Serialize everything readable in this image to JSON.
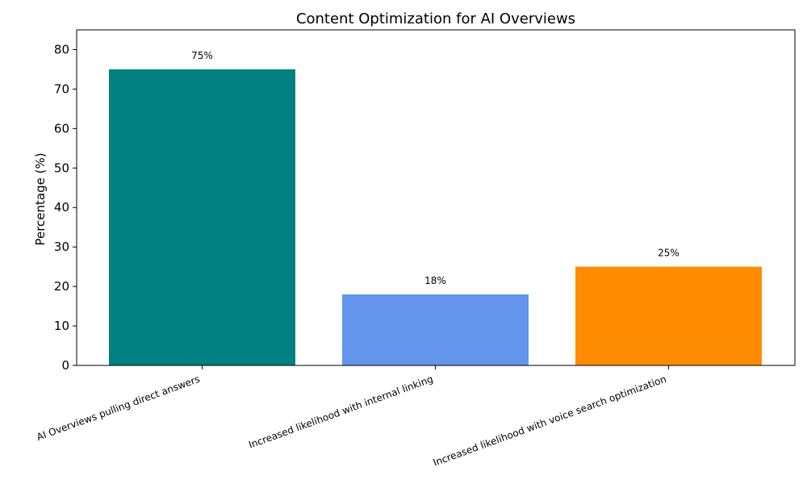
{
  "chart_data": {
    "type": "bar",
    "title": "Content Optimization for AI Overviews",
    "xlabel": "",
    "ylabel": "Percentage (%)",
    "ylim": [
      0,
      85
    ],
    "yticks": [
      0,
      10,
      20,
      30,
      40,
      50,
      60,
      70,
      80
    ],
    "categories": [
      "AI Overviews pulling direct answers",
      "Increased likelihood with internal linking",
      "Increased likelihood with voice search optimization"
    ],
    "values": [
      75,
      18,
      25
    ],
    "data_labels": [
      "75%",
      "18%",
      "25%"
    ],
    "colors": [
      "#008080",
      "#6495ED",
      "#FF8C00"
    ],
    "grid": false,
    "legend": "none"
  }
}
